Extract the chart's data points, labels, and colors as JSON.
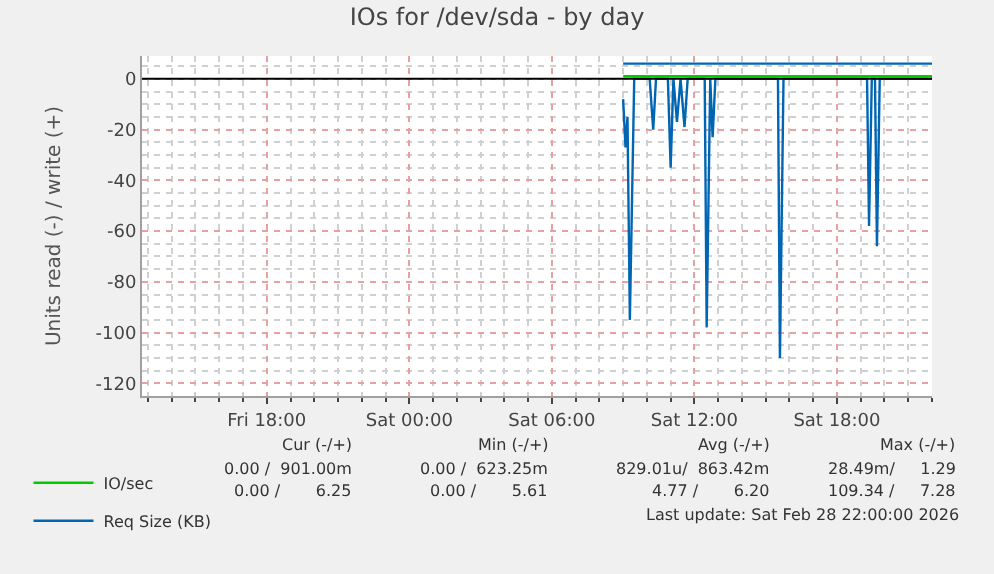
{
  "chart_data": {
    "type": "line",
    "title": "IOs for /dev/sda - by day",
    "ylabel": "Units read (-) / write (+)",
    "xlim": [
      "2026-02-27T12:45",
      "2026-02-28T22:00"
    ],
    "xticks": [
      {
        "value": "2026-02-27T18:00",
        "label": "Fri 18:00"
      },
      {
        "value": "2026-02-28T00:00",
        "label": "Sat 00:00"
      },
      {
        "value": "2026-02-28T06:00",
        "label": "Sat 06:00"
      },
      {
        "value": "2026-02-28T12:00",
        "label": "Sat 12:00"
      },
      {
        "value": "2026-02-28T18:00",
        "label": "Sat 18:00"
      }
    ],
    "ylim": [
      -125,
      9
    ],
    "yticks": [
      0,
      -20,
      -40,
      -60,
      -80,
      -100,
      -120
    ],
    "grid": true,
    "legend": "bottom left",
    "ref_lines": [
      {
        "axis": "y",
        "value": 0,
        "color": "#000000"
      }
    ],
    "series": [
      {
        "name": "IO/sec",
        "color": "#00cc00",
        "x": [
          "2026-02-28T09:00",
          "2026-02-28T11:00",
          "2026-02-28T13:00",
          "2026-02-28T15:00",
          "2026-02-28T17:00",
          "2026-02-28T19:00",
          "2026-02-28T21:00",
          "2026-02-28T22:00"
        ],
        "values": [
          1,
          1,
          1,
          1,
          1,
          1,
          1,
          1
        ]
      },
      {
        "name": "Req Size (KB)",
        "color": "#0066b3",
        "x": [
          "2026-02-28T09:00",
          "2026-02-28T10:00",
          "2026-02-28T11:00",
          "2026-02-28T12:00",
          "2026-02-28T13:00",
          "2026-02-28T14:00",
          "2026-02-28T15:00",
          "2026-02-28T16:00",
          "2026-02-28T17:00",
          "2026-02-28T18:00",
          "2026-02-28T19:00",
          "2026-02-28T20:00",
          "2026-02-28T21:00",
          "2026-02-28T22:00"
        ],
        "values": [
          6,
          6,
          6,
          6,
          6,
          6,
          6,
          6,
          6,
          6,
          6,
          6,
          6,
          6
        ]
      },
      {
        "color": "#0066b3",
        "x": [
          "2026-02-28T09:00",
          "2026-02-28T09:06",
          "2026-02-28T09:11",
          "2026-02-28T09:17",
          "2026-02-28T09:28",
          "2026-02-28T10:07",
          "2026-02-28T10:16",
          "2026-02-28T10:23",
          "2026-02-28T10:53",
          "2026-02-28T11:00",
          "2026-02-28T11:07",
          "2026-02-28T11:16",
          "2026-02-28T11:25",
          "2026-02-28T11:35",
          "2026-02-28T11:43",
          "2026-02-28T12:26",
          "2026-02-28T12:31",
          "2026-02-28T12:40",
          "2026-02-28T12:46",
          "2026-02-28T12:53",
          "2026-02-28T15:31",
          "2026-02-28T15:36",
          "2026-02-28T15:45",
          "2026-02-28T19:16",
          "2026-02-28T19:21",
          "2026-02-28T19:28",
          "2026-02-28T19:36",
          "2026-02-28T19:41",
          "2026-02-28T19:48",
          "2026-02-28T22:00"
        ],
        "values": [
          -8,
          -27,
          -15,
          -95,
          0,
          0,
          -20,
          0,
          0,
          -35,
          0,
          -17,
          0,
          -19,
          0,
          0,
          -98,
          0,
          -23,
          0,
          0,
          -110,
          0,
          0,
          -58,
          0,
          0,
          -66,
          0,
          0
        ]
      }
    ],
    "annotations": [
      "Cur (-/+)",
      "Min (-/+)",
      "Avg (-/+)",
      "Max (-/+)",
      "0.00 /  901.00m",
      "0.00 /  623.25m",
      "829.01u/  863.42m",
      "28.49m/     1.29",
      "0.00 /       6.25",
      "0.00 /       5.61",
      "4.77 /       6.20",
      "109.34 /     7.28",
      "Last update: Sat Feb 28 22:00:00 2026"
    ]
  }
}
